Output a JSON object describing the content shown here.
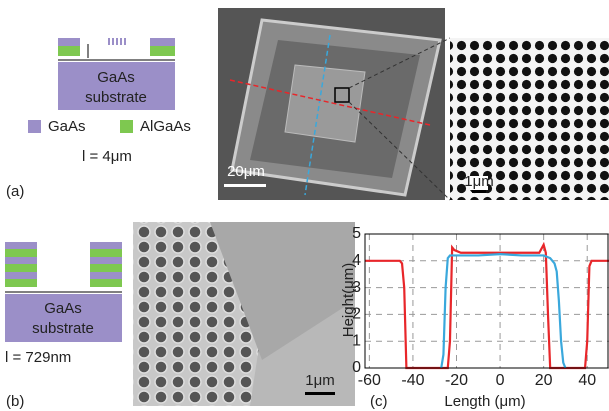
{
  "panel_a": {
    "label": "(a)",
    "substrate": [
      "GaAs",
      "substrate"
    ],
    "legend": [
      "GaAs",
      "AlGaAs"
    ],
    "length": "l = 4μm",
    "scale_bar_1": "20μm",
    "scale_bar_2": "1μm"
  },
  "panel_b": {
    "label": "(b)",
    "substrate": [
      "GaAs",
      "substrate"
    ],
    "length": "l = 729nm",
    "scale_bar": "1μm"
  },
  "chart_data": {
    "type": "line",
    "label": "(c)",
    "x_label": "Length (μm)",
    "y_label": "Height(μm)",
    "xlim": [
      -62,
      50
    ],
    "ylim": [
      0,
      5
    ],
    "xticks": [
      -60,
      -40,
      -20,
      0,
      20,
      40
    ],
    "yticks": [
      0,
      1,
      2,
      3,
      4,
      5
    ],
    "grid": true,
    "series": [
      {
        "color": "#e8262a",
        "x": [
          -62,
          -46,
          -45,
          -44,
          -43,
          -24,
          -23,
          -22,
          -21,
          -18,
          -10,
          0,
          10,
          18,
          20,
          21,
          22,
          23,
          39,
          40,
          41,
          42,
          50
        ],
        "values": [
          4,
          4,
          3.9,
          3,
          0,
          0,
          1,
          4.5,
          4.4,
          4.3,
          4.3,
          4.3,
          4.3,
          4.3,
          4.6,
          4.3,
          2,
          0,
          0,
          1,
          3.8,
          4,
          4
        ]
      },
      {
        "color": "#3aa8dc",
        "x": [
          -27,
          -26,
          -25,
          -24,
          -23,
          -20,
          -10,
          0,
          10,
          20,
          23,
          24,
          25,
          26,
          27,
          28,
          29,
          30
        ],
        "values": [
          0,
          0.5,
          3,
          4.1,
          4.2,
          4.2,
          4.2,
          4.25,
          4.2,
          4.2,
          4.1,
          4,
          3.9,
          3.6,
          2.5,
          1,
          0.2,
          0
        ]
      }
    ]
  }
}
